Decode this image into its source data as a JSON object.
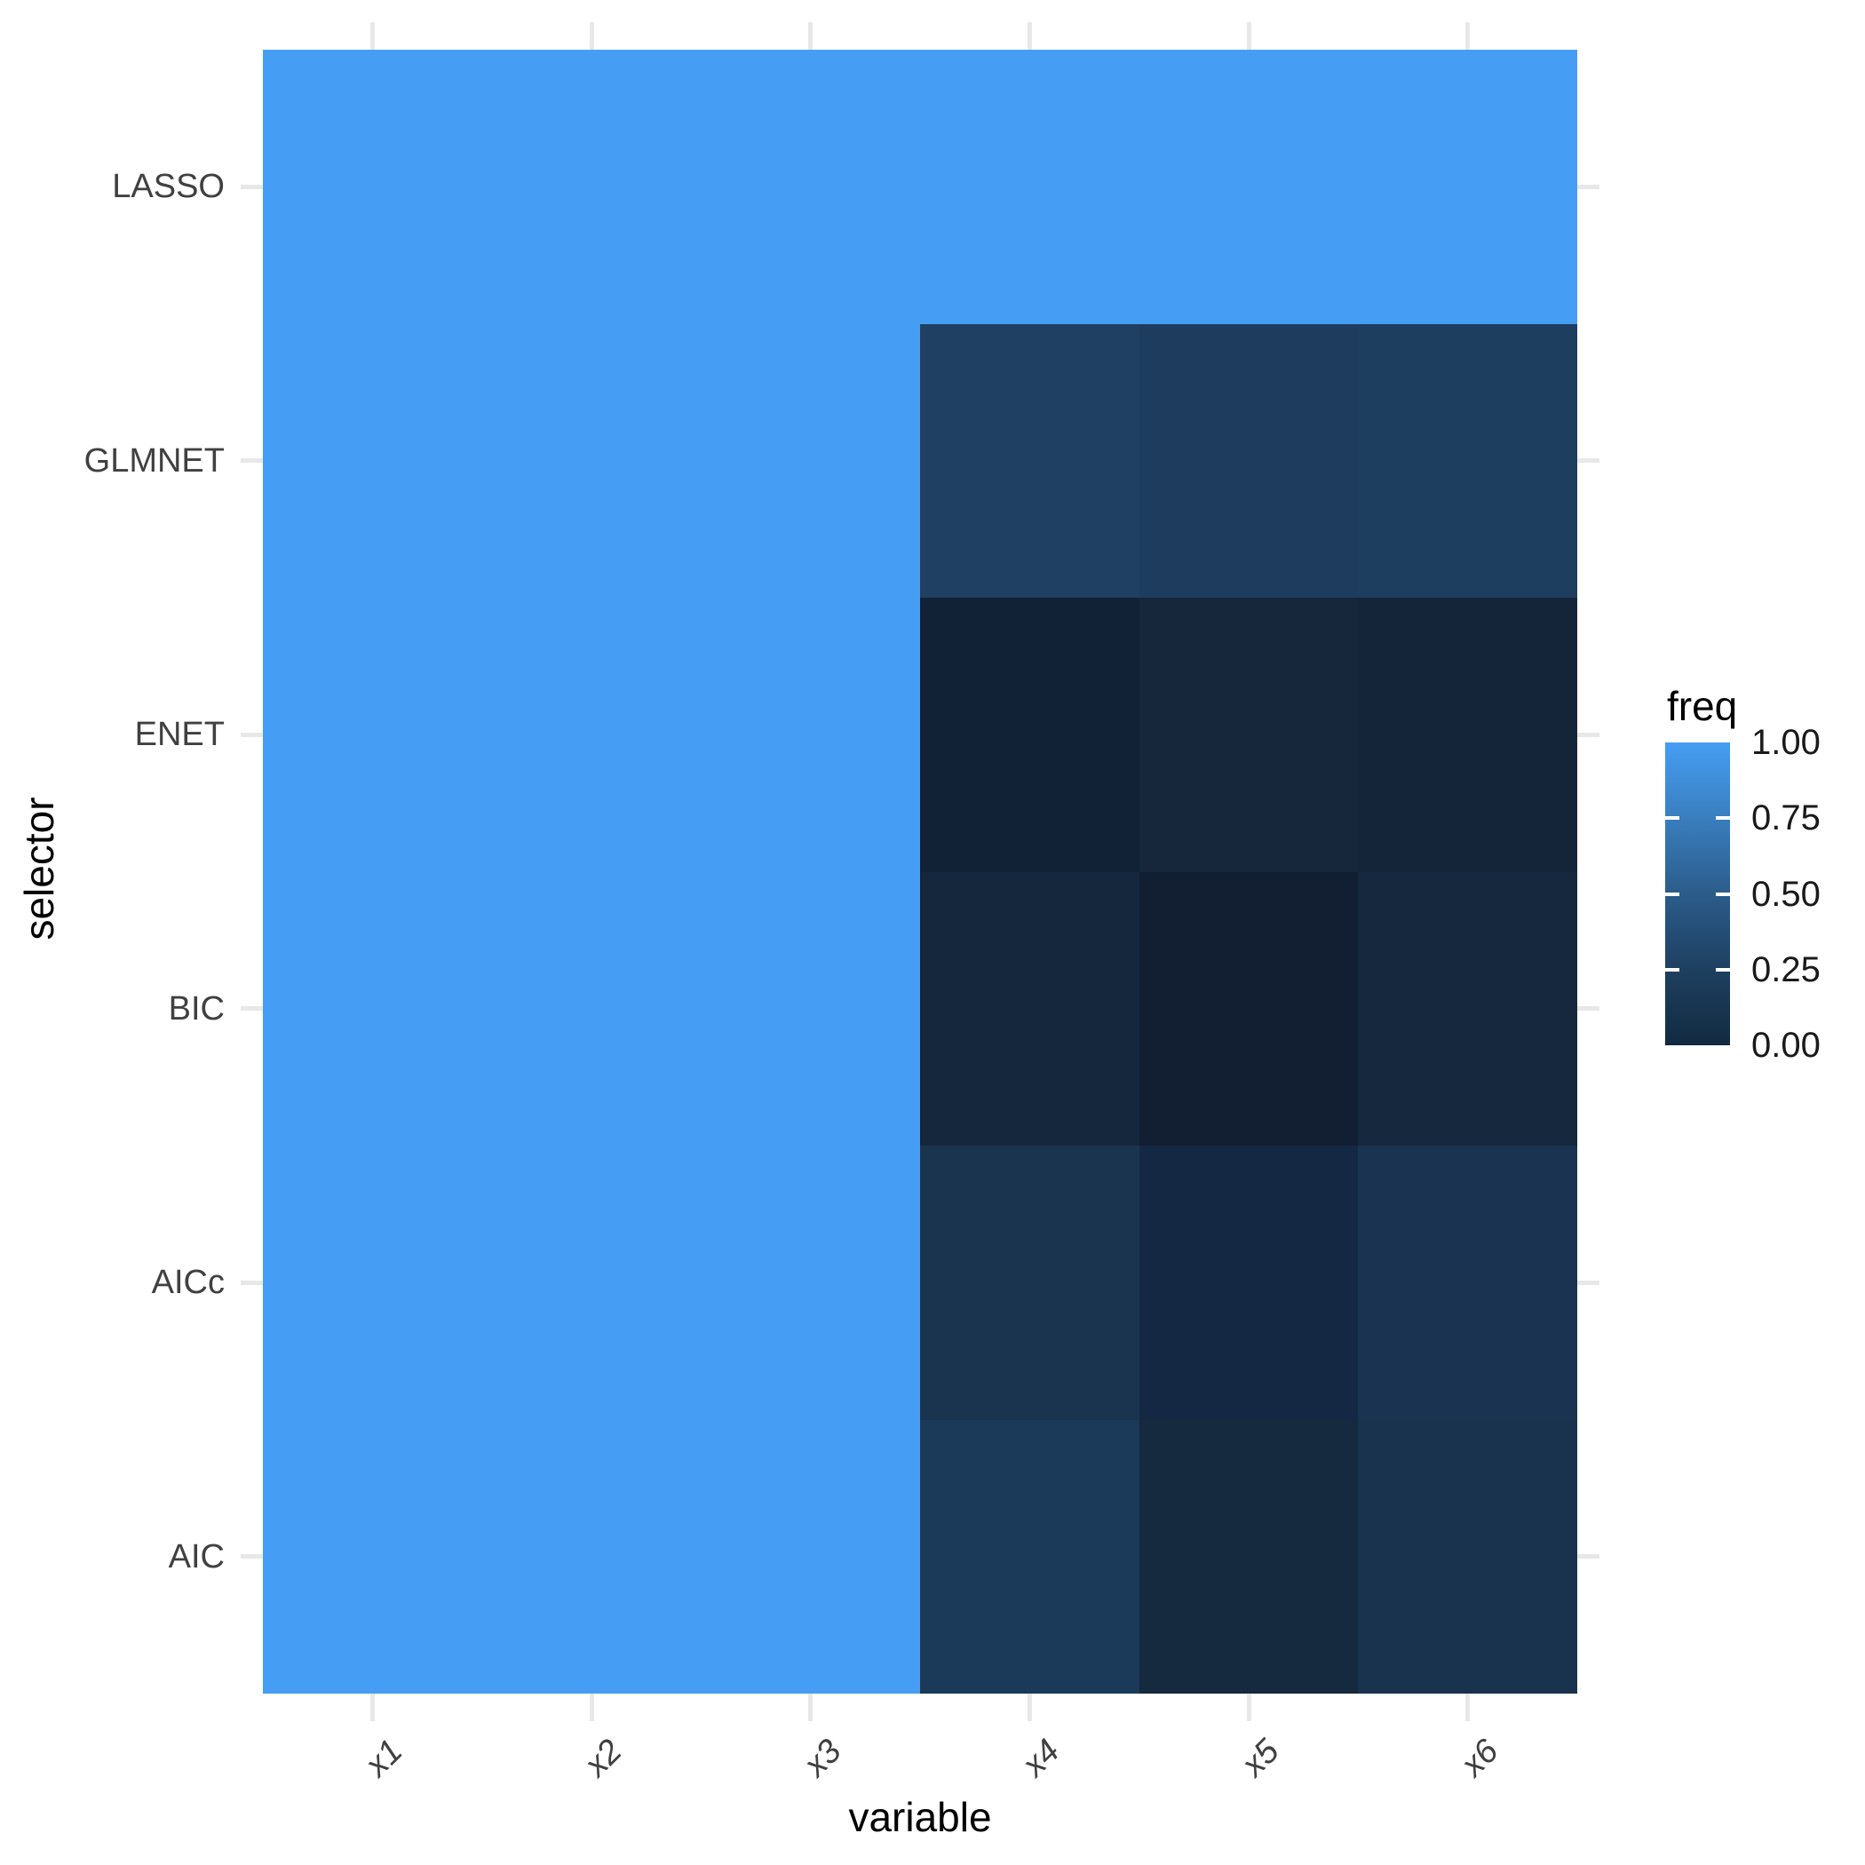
{
  "chart_data": {
    "type": "heatmap",
    "title": "",
    "x": [
      "x1",
      "x2",
      "x3",
      "x4",
      "x5",
      "x6"
    ],
    "y_top_to_bottom": [
      "LASSO",
      "GLMNET",
      "ENET",
      "BIC",
      "AICc",
      "AIC"
    ],
    "xlabel": "variable",
    "ylabel": "selector",
    "legend_title": "freq",
    "legend_position": "right",
    "fill_scale": {
      "limits": [
        0.0,
        1.0
      ],
      "low_color": "#122A40",
      "high_color": "#459EF3"
    },
    "grid": true,
    "series": [
      {
        "name": "LASSO",
        "values": [
          1.0,
          1.0,
          1.0,
          1.0,
          1.0,
          1.0
        ]
      },
      {
        "name": "GLMNET",
        "values": [
          1.0,
          1.0,
          1.0,
          0.24,
          0.22,
          0.23
        ]
      },
      {
        "name": "ENET",
        "values": [
          1.0,
          1.0,
          1.0,
          0.01,
          0.04,
          0.02
        ]
      },
      {
        "name": "BIC",
        "values": [
          1.0,
          1.0,
          1.0,
          0.04,
          0.01,
          0.05
        ]
      },
      {
        "name": "AICc",
        "values": [
          1.0,
          1.0,
          1.0,
          0.12,
          0.05,
          0.11
        ]
      },
      {
        "name": "AIC",
        "values": [
          1.0,
          1.0,
          1.0,
          0.18,
          0.06,
          0.1
        ]
      }
    ],
    "cell_colors": [
      [
        "#459EF3",
        "#459EF3",
        "#459EF3",
        "#459EF3",
        "#459EF3",
        "#459EF3"
      ],
      [
        "#459EF3",
        "#459EF3",
        "#459EF3",
        "#1F4062",
        "#1E3D5E",
        "#1E3E60"
      ],
      [
        "#459EF3",
        "#459EF3",
        "#459EF3",
        "#122236",
        "#16273C",
        "#14253A"
      ],
      [
        "#459EF3",
        "#459EF3",
        "#459EF3",
        "#15273D",
        "#121F33",
        "#16283E"
      ],
      [
        "#459EF3",
        "#459EF3",
        "#459EF3",
        "#1A3450",
        "#152843",
        "#1A3350"
      ],
      [
        "#459EF3",
        "#459EF3",
        "#459EF3",
        "#1B3A59",
        "#15293F",
        "#19324E"
      ]
    ]
  },
  "legend": {
    "title": "freq",
    "tick_labels": [
      "1.00",
      "0.75",
      "0.50",
      "0.25",
      "0.00"
    ],
    "gradient_stops": [
      {
        "value": 0.0,
        "color": "#122A40"
      },
      {
        "value": 0.25,
        "color": "#1E4060"
      },
      {
        "value": 0.5,
        "color": "#2B5C8A"
      },
      {
        "value": 0.75,
        "color": "#3A7EBE"
      },
      {
        "value": 1.0,
        "color": "#459EF3"
      }
    ]
  },
  "colors": {
    "background": "#FFFFFF",
    "tile_high": "#459EF3",
    "gridline": "#E8E8E8",
    "axis_text": "#404040",
    "axis_title": "#000000",
    "legend_text": "#1A1A1A",
    "legend_tick": "#FFFFFF"
  }
}
